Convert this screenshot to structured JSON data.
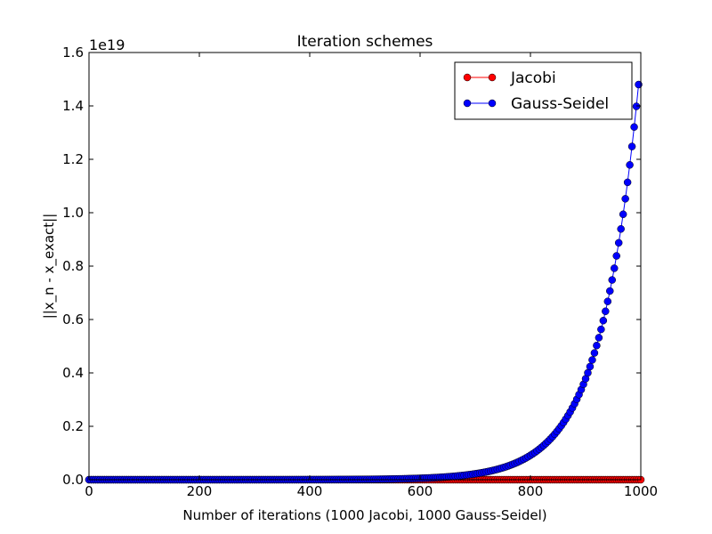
{
  "chart_data": {
    "type": "line",
    "title": "Iteration schemes",
    "xlabel": "Number of iterations (1000 Jacobi, 1000 Gauss-Seidel)",
    "ylabel": "||x_n - x_exact||",
    "xlim": [
      0,
      1000
    ],
    "ylim": [
      0,
      1.6
    ],
    "y_scale_label": "1e19",
    "y_multiplier": 1e+19,
    "xticks": [
      0,
      200,
      400,
      600,
      800,
      1000
    ],
    "xtick_labels": [
      "0",
      "200",
      "400",
      "600",
      "800",
      "1000"
    ],
    "yticks": [
      0.0,
      0.2,
      0.4,
      0.6,
      0.8,
      1.0,
      1.2,
      1.4,
      1.6
    ],
    "ytick_labels": [
      "0.0",
      "0.2",
      "0.4",
      "0.6",
      "0.8",
      "1.0",
      "1.2",
      "1.4",
      "1.6"
    ],
    "grid": false,
    "legend_position": "top-right",
    "series": [
      {
        "name": "Jacobi",
        "color": "#ff0000",
        "marker": "circle",
        "x_start": 0,
        "x_end": 1000,
        "x_step": 4,
        "y_value": 0
      },
      {
        "name": "Gauss-Seidel",
        "color": "#0000ff",
        "marker": "circle",
        "x_start": 0,
        "x_end": 996,
        "x_step": 4,
        "y_at_end": 1.48,
        "growth_factor_per_step": 1.0585
      }
    ]
  }
}
